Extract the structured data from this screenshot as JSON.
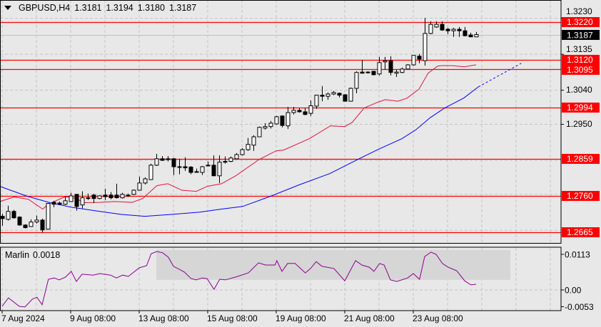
{
  "header": {
    "symbol_timeframe": "GBPUSD,H4",
    "open": "1.3181",
    "high": "1.3194",
    "low": "1.3180",
    "close": "1.3187"
  },
  "colors": {
    "background": "#e8e8e8",
    "grid": "#c4c4c4",
    "level": "#ff0000",
    "ma_red": "#e0143c",
    "ma_blue": "#0000ff",
    "indicator": "#8b008b",
    "zone": "#d6d6d6",
    "current_price_bg": "#000000"
  },
  "chart_data": {
    "type": "candlestick",
    "ylim": [
      1.26367,
      1.32783
    ],
    "y_tick_labels": [
      "1.3230",
      "1.3135",
      "1.3040",
      "1.2950"
    ],
    "y_grid": [
      1.323,
      1.3135,
      1.304,
      1.295,
      1.2855,
      1.2765,
      1.267
    ],
    "levels": [
      "1.3220",
      "1.3120",
      "1.3095",
      "1.2994",
      "1.2859",
      "1.2760",
      "1.2665"
    ],
    "current_price": "1.3187",
    "x_tick_labels": [
      {
        "bar": 0,
        "label": "7 Aug 2024"
      },
      {
        "bar": 12,
        "label": "9 Aug 08:00"
      },
      {
        "bar": 24,
        "label": "13 Aug 08:00"
      },
      {
        "bar": 36,
        "label": "15 Aug 08:00"
      },
      {
        "bar": 48,
        "label": "19 Aug 08:00"
      },
      {
        "bar": 60,
        "label": "21 Aug 08:00"
      },
      {
        "bar": 72,
        "label": "23 Aug 08:00"
      }
    ],
    "x_grid_bars": [
      0,
      6,
      12,
      18,
      24,
      30,
      36,
      42,
      48,
      54,
      60,
      66,
      72,
      78,
      84,
      90,
      96
    ],
    "candles_ohlc": [
      [
        1.2707,
        1.2714,
        1.2682,
        1.2701
      ],
      [
        1.2699,
        1.2735,
        1.2696,
        1.272
      ],
      [
        1.272,
        1.2724,
        1.2701,
        1.2703
      ],
      [
        1.2705,
        1.2707,
        1.2682,
        1.2684
      ],
      [
        1.2684,
        1.2686,
        1.2675,
        1.2677
      ],
      [
        1.268,
        1.2699,
        1.2679,
        1.2692
      ],
      [
        1.2692,
        1.2709,
        1.2688,
        1.2697
      ],
      [
        1.2697,
        1.2701,
        1.2664,
        1.2671
      ],
      [
        1.2673,
        1.2742,
        1.2672,
        1.2741
      ],
      [
        1.2744,
        1.2748,
        1.2731,
        1.2739
      ],
      [
        1.2742,
        1.2746,
        1.2737,
        1.2739
      ],
      [
        1.2739,
        1.2758,
        1.2737,
        1.2748
      ],
      [
        1.2746,
        1.2769,
        1.2745,
        1.2761
      ],
      [
        1.2765,
        1.2766,
        1.2722,
        1.2733
      ],
      [
        1.2737,
        1.2773,
        1.2728,
        1.2756
      ],
      [
        1.2756,
        1.2767,
        1.275,
        1.2754
      ],
      [
        1.2763,
        1.2767,
        1.2742,
        1.2754
      ],
      [
        1.2754,
        1.2763,
        1.2752,
        1.2761
      ],
      [
        1.2763,
        1.278,
        1.275,
        1.2759
      ],
      [
        1.2763,
        1.2771,
        1.2752,
        1.2756
      ],
      [
        1.2763,
        1.2793,
        1.2754,
        1.2756
      ],
      [
        1.2756,
        1.2769,
        1.2754,
        1.2765
      ],
      [
        1.2762,
        1.2767,
        1.2758,
        1.2763
      ],
      [
        1.2765,
        1.2778,
        1.2763,
        1.2776
      ],
      [
        1.2776,
        1.2812,
        1.2775,
        1.2795
      ],
      [
        1.2795,
        1.281,
        1.2791,
        1.2806
      ],
      [
        1.2804,
        1.2846,
        1.2803,
        1.2842
      ],
      [
        1.2842,
        1.2872,
        1.284,
        1.2859
      ],
      [
        1.2859,
        1.2866,
        1.2853,
        1.2855
      ],
      [
        1.2859,
        1.2866,
        1.2852,
        1.2857
      ],
      [
        1.2859,
        1.2861,
        1.2816,
        1.2838
      ],
      [
        1.2838,
        1.2859,
        1.2818,
        1.2837
      ],
      [
        1.2838,
        1.2863,
        1.2827,
        1.2835
      ],
      [
        1.2837,
        1.284,
        1.2818,
        1.2823
      ],
      [
        1.2825,
        1.2833,
        1.2822,
        1.2824
      ],
      [
        1.2823,
        1.284,
        1.2816,
        1.2838
      ],
      [
        1.2841,
        1.2852,
        1.284,
        1.2842
      ],
      [
        1.2842,
        1.2868,
        1.2813,
        1.2814
      ],
      [
        1.2814,
        1.2868,
        1.2795,
        1.285
      ],
      [
        1.285,
        1.2865,
        1.2846,
        1.2852
      ],
      [
        1.2852,
        1.2865,
        1.285,
        1.2861
      ],
      [
        1.2859,
        1.2874,
        1.2858,
        1.287
      ],
      [
        1.287,
        1.2887,
        1.2868,
        1.2883
      ],
      [
        1.2883,
        1.2914,
        1.288,
        1.2897
      ],
      [
        1.2895,
        1.2921,
        1.288,
        1.2917
      ],
      [
        1.2917,
        1.2944,
        1.2916,
        1.2942
      ],
      [
        1.294,
        1.2953,
        1.2936,
        1.2944
      ],
      [
        1.2944,
        1.2959,
        1.2939,
        1.2953
      ],
      [
        1.2951,
        1.2972,
        1.2949,
        1.297
      ],
      [
        1.2972,
        1.2973,
        1.2942,
        1.2947
      ],
      [
        1.2946,
        1.2996,
        1.2938,
        1.2981
      ],
      [
        1.2981,
        1.2996,
        1.2976,
        1.2987
      ],
      [
        1.2987,
        1.2993,
        1.2981,
        1.2983
      ],
      [
        1.2983,
        1.2993,
        1.2974,
        1.2976
      ],
      [
        1.2979,
        1.3013,
        1.2972,
        1.2999
      ],
      [
        1.2998,
        1.3028,
        1.2991,
        1.3027
      ],
      [
        1.3027,
        1.3051,
        1.3011,
        1.3024
      ],
      [
        1.3024,
        1.3034,
        1.3015,
        1.303
      ],
      [
        1.303,
        1.3038,
        1.3027,
        1.3034
      ],
      [
        1.3032,
        1.3034,
        1.3021,
        1.3027
      ],
      [
        1.3028,
        1.303,
        1.301,
        1.3011
      ],
      [
        1.3011,
        1.3047,
        1.301,
        1.3045
      ],
      [
        1.3045,
        1.309,
        1.3032,
        1.3087
      ],
      [
        1.3088,
        1.312,
        1.3084,
        1.3085
      ],
      [
        1.3088,
        1.309,
        1.3084,
        1.3087
      ],
      [
        1.309,
        1.3091,
        1.3079,
        1.3081
      ],
      [
        1.3083,
        1.3128,
        1.3079,
        1.3113
      ],
      [
        1.3115,
        1.3128,
        1.3094,
        1.3118
      ],
      [
        1.3118,
        1.313,
        1.3079,
        1.3087
      ],
      [
        1.3085,
        1.3094,
        1.3075,
        1.3088
      ],
      [
        1.3087,
        1.31,
        1.3085,
        1.3096
      ],
      [
        1.3096,
        1.3109,
        1.3095,
        1.3107
      ],
      [
        1.3107,
        1.3133,
        1.3105,
        1.3132
      ],
      [
        1.313,
        1.3136,
        1.3111,
        1.3122
      ],
      [
        1.3118,
        1.3231,
        1.3105,
        1.319
      ],
      [
        1.319,
        1.3222,
        1.3188,
        1.3214
      ],
      [
        1.3207,
        1.3222,
        1.3205,
        1.3214
      ],
      [
        1.3214,
        1.3222,
        1.3197,
        1.3199
      ],
      [
        1.3201,
        1.3205,
        1.3188,
        1.3197
      ],
      [
        1.3197,
        1.3205,
        1.3181,
        1.3201
      ],
      [
        1.3201,
        1.3207,
        1.3181,
        1.3197
      ],
      [
        1.3197,
        1.3207,
        1.3182,
        1.3184
      ],
      [
        1.3186,
        1.3192,
        1.3181,
        1.3181
      ],
      [
        1.3181,
        1.3194,
        1.318,
        1.3187
      ]
    ],
    "ma_red": [
      [
        -0.4,
        1.2746
      ],
      [
        2.1,
        1.2758
      ],
      [
        4.6,
        1.2752
      ],
      [
        7.1,
        1.2726
      ],
      [
        8.1,
        1.2739
      ],
      [
        10.9,
        1.2758
      ],
      [
        12.1,
        1.2758
      ],
      [
        14.6,
        1.2743
      ],
      [
        17.1,
        1.2744
      ],
      [
        19.6,
        1.2746
      ],
      [
        22.8,
        1.2744
      ],
      [
        24.6,
        1.2754
      ],
      [
        27.1,
        1.2788
      ],
      [
        29,
        1.2793
      ],
      [
        31.5,
        1.2776
      ],
      [
        34,
        1.2773
      ],
      [
        35.9,
        1.2786
      ],
      [
        38.4,
        1.2793
      ],
      [
        40.9,
        1.2814
      ],
      [
        45,
        1.2857
      ],
      [
        48,
        1.288
      ],
      [
        49.3,
        1.2882
      ],
      [
        53.8,
        1.2912
      ],
      [
        57.5,
        1.2946
      ],
      [
        60,
        1.2944
      ],
      [
        61.3,
        1.2955
      ],
      [
        63.4,
        1.2993
      ],
      [
        65.9,
        1.3009
      ],
      [
        67.1,
        1.3015
      ],
      [
        69.3,
        1.3011
      ],
      [
        70.9,
        1.3019
      ],
      [
        73,
        1.3043
      ],
      [
        74.6,
        1.3085
      ],
      [
        76.3,
        1.3104
      ],
      [
        77.1,
        1.3105
      ],
      [
        78.8,
        1.3105
      ],
      [
        80.9,
        1.3102
      ],
      [
        83,
        1.3107
      ]
    ],
    "ma_blue": [
      [
        -0.4,
        1.2786
      ],
      [
        4.6,
        1.2759
      ],
      [
        8.4,
        1.2743
      ],
      [
        12.1,
        1.2731
      ],
      [
        17.1,
        1.272
      ],
      [
        20.9,
        1.2712
      ],
      [
        25,
        1.2707
      ],
      [
        29.6,
        1.2712
      ],
      [
        34.6,
        1.2718
      ],
      [
        38.4,
        1.2726
      ],
      [
        42.1,
        1.2733
      ],
      [
        47,
        1.276
      ],
      [
        52,
        1.279
      ],
      [
        57.4,
        1.282
      ],
      [
        62.5,
        1.2859
      ],
      [
        65.9,
        1.2884
      ],
      [
        70,
        1.2912
      ],
      [
        72.5,
        1.2936
      ],
      [
        75,
        1.2968
      ],
      [
        77.5,
        1.2993
      ],
      [
        80.9,
        1.302
      ],
      [
        83.4,
        1.3049
      ]
    ],
    "ma_blue_projection": [
      [
        83.4,
        1.3049
      ],
      [
        90.9,
        1.3111
      ]
    ],
    "indicator": {
      "name": "Marlin",
      "value_label": "0.0018",
      "ylim": [
        -0.00655,
        0.01333
      ],
      "tick_labels": [
        {
          "value": 0.0113,
          "label": "0.0113"
        },
        {
          "value": 0.0,
          "label": "0.00"
        },
        {
          "value": -0.0053,
          "label": "-0.0053"
        }
      ],
      "zone": {
        "from_bar": 27,
        "to_bar": 89,
        "top": 0.0127,
        "bottom": 0.0032
      },
      "points": [
        [
          0,
          -0.0052
        ],
        [
          1.1,
          -0.0025
        ],
        [
          3,
          -0.0052
        ],
        [
          4,
          -0.0054
        ],
        [
          5.3,
          -0.0029
        ],
        [
          6.1,
          -0.0023
        ],
        [
          7,
          -0.0047
        ],
        [
          8.1,
          0.0034
        ],
        [
          9.1,
          0.0038
        ],
        [
          10,
          0.0032
        ],
        [
          11.1,
          0.0041
        ],
        [
          12.1,
          0.0059
        ],
        [
          13,
          0.0027
        ],
        [
          14,
          0.005
        ],
        [
          15.9,
          0.0047
        ],
        [
          17.1,
          0.0052
        ],
        [
          19,
          0.0047
        ],
        [
          20,
          0.0038
        ],
        [
          21.1,
          0.0047
        ],
        [
          22.1,
          0.0043
        ],
        [
          24,
          0.007
        ],
        [
          25.3,
          0.0077
        ],
        [
          26.1,
          0.0115
        ],
        [
          27.1,
          0.0122
        ],
        [
          28.1,
          0.0118
        ],
        [
          29.1,
          0.0104
        ],
        [
          30,
          0.0075
        ],
        [
          31.9,
          0.0057
        ],
        [
          33.1,
          0.0036
        ],
        [
          34,
          0.0032
        ],
        [
          35,
          0.0038
        ],
        [
          35.9,
          0.0036
        ],
        [
          37.1,
          0.0002
        ],
        [
          38.1,
          0.0034
        ],
        [
          39.1,
          0.0032
        ],
        [
          40.9,
          0.0041
        ],
        [
          43.1,
          0.0054
        ],
        [
          44.9,
          0.0086
        ],
        [
          46.1,
          0.0079
        ],
        [
          47.8,
          0.0079
        ],
        [
          48.1,
          0.0093
        ],
        [
          49,
          0.0059
        ],
        [
          50,
          0.0084
        ],
        [
          51.3,
          0.0084
        ],
        [
          53.1,
          0.0054
        ],
        [
          54,
          0.0068
        ],
        [
          55,
          0.009
        ],
        [
          56,
          0.0075
        ],
        [
          58.1,
          0.0068
        ],
        [
          60,
          0.0029
        ],
        [
          61.9,
          0.0093
        ],
        [
          63,
          0.0079
        ],
        [
          64.3,
          0.0072
        ],
        [
          65.1,
          0.0059
        ],
        [
          66.1,
          0.0084
        ],
        [
          66.9,
          0.0079
        ],
        [
          68,
          0.0032
        ],
        [
          69.1,
          0.0027
        ],
        [
          71,
          0.0038
        ],
        [
          72,
          0.0052
        ],
        [
          73.1,
          0.0034
        ],
        [
          74,
          0.0106
        ],
        [
          75.1,
          0.012
        ],
        [
          76,
          0.0113
        ],
        [
          77.1,
          0.0084
        ],
        [
          78.1,
          0.0072
        ],
        [
          79.6,
          0.0061
        ],
        [
          81,
          0.0029
        ],
        [
          82.1,
          0.0016
        ],
        [
          83,
          0.0018
        ]
      ]
    }
  }
}
